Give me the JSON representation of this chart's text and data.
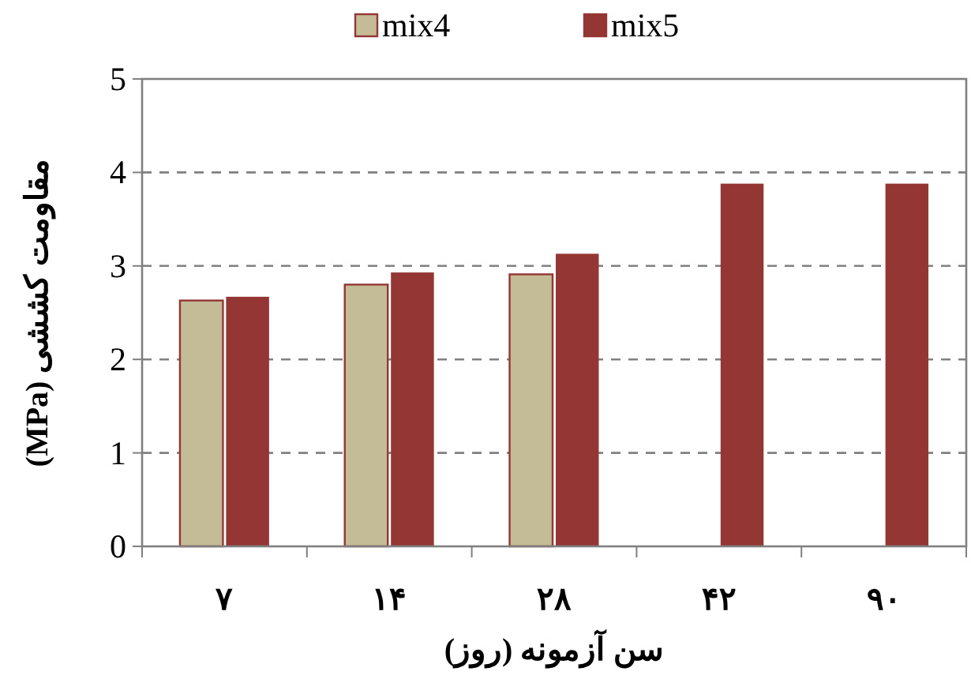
{
  "chart_data": {
    "type": "bar",
    "xlabel": "سن آزمونه (روز)",
    "ylabel": "مقاومت کششی (MPa)",
    "categories": [
      "۷",
      "۱۴",
      "۲۸",
      "۴۲",
      "۹۰"
    ],
    "series": [
      {
        "name": "mix4",
        "color": "#c4bc96",
        "values": [
          2.63,
          2.8,
          2.91,
          null,
          null
        ]
      },
      {
        "name": "mix5",
        "color": "#943634",
        "values": [
          2.67,
          2.93,
          3.13,
          3.88,
          3.88
        ]
      }
    ],
    "ylim": [
      0,
      5
    ],
    "yticks": [
      0,
      1,
      2,
      3,
      4,
      5
    ],
    "grid": "y",
    "legend": "top"
  }
}
